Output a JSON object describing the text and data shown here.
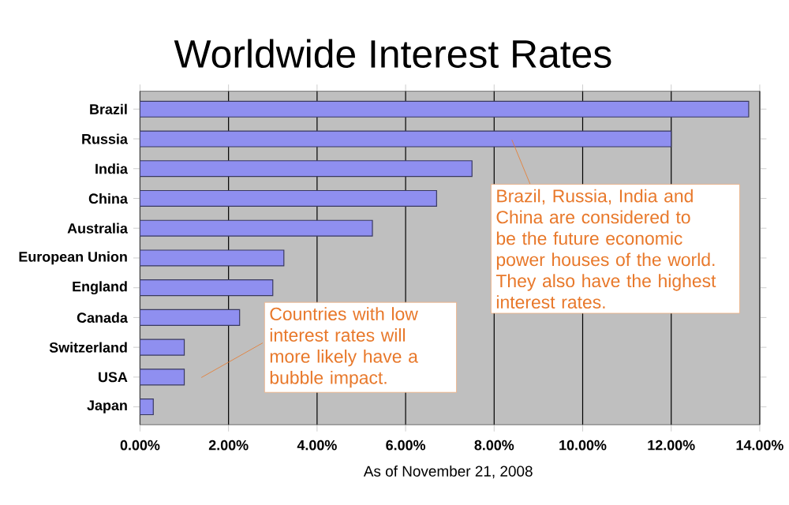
{
  "chart_data": {
    "type": "bar",
    "orientation": "horizontal",
    "title": "Worldwide Interest Rates",
    "categories": [
      "Brazil",
      "Russia",
      "India",
      "China",
      "Australia",
      "European Union",
      "England",
      "Canada",
      "Switzerland",
      "USA",
      "Japan"
    ],
    "values": [
      13.75,
      12.0,
      7.5,
      6.7,
      5.25,
      3.25,
      3.0,
      2.25,
      1.0,
      1.0,
      0.3
    ],
    "color": "#8f8ff0",
    "xlim": [
      0,
      14
    ],
    "xticks": [
      {
        "value": 0,
        "label": "0.00%"
      },
      {
        "value": 2,
        "label": "2.00%"
      },
      {
        "value": 4,
        "label": "4.00%"
      },
      {
        "value": 6,
        "label": "6.00%"
      },
      {
        "value": 8,
        "label": "8.00%"
      },
      {
        "value": 10,
        "label": "10.00%"
      },
      {
        "value": 12,
        "label": "12.00%"
      },
      {
        "value": 14,
        "label": "14.00%"
      }
    ],
    "grid": "x",
    "annotations": [
      {
        "text": "Brazil, Russia, India and China are considered to be the future economic power houses of the world.  They also have the highest interest rates.",
        "x": 8.4,
        "y": "Russia"
      },
      "Countries with low interest rates will more likely have a bubble impact.",
      "As of November 21, 2008"
    ]
  }
}
